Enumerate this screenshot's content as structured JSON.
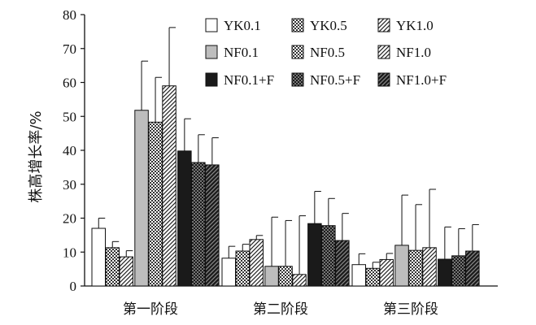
{
  "chart_data": {
    "type": "bar",
    "title": "",
    "xlabel": "",
    "ylabel": "株高增长率/%",
    "ylim": [
      0,
      80
    ],
    "yticks": [
      0,
      10,
      20,
      30,
      40,
      50,
      60,
      70,
      80
    ],
    "grid": false,
    "legend_position": "top-right",
    "categories": [
      "第一阶段",
      "第二阶段",
      "第三阶段"
    ],
    "series": [
      {
        "name": "YK0.1",
        "values": [
          17.0,
          8.2,
          6.3
        ],
        "errors": [
          3.0,
          3.5,
          3.2
        ],
        "fill": "white"
      },
      {
        "name": "YK0.5",
        "values": [
          11.3,
          10.3,
          5.2
        ],
        "errors": [
          1.8,
          2.0,
          1.8
        ],
        "fill": "dots"
      },
      {
        "name": "YK1.0",
        "values": [
          8.6,
          13.7,
          7.8
        ],
        "errors": [
          1.8,
          1.2,
          1.8
        ],
        "fill": "diag"
      },
      {
        "name": "NF0.1",
        "values": [
          51.8,
          5.8,
          12.0
        ],
        "errors": [
          14.5,
          14.5,
          14.8
        ],
        "fill": "gray"
      },
      {
        "name": "NF0.5",
        "values": [
          48.3,
          5.8,
          10.5
        ],
        "errors": [
          13.2,
          13.5,
          13.5
        ],
        "fill": "dots"
      },
      {
        "name": "NF1.0",
        "values": [
          59.0,
          3.4,
          11.3
        ],
        "errors": [
          17.2,
          17.3,
          17.2
        ],
        "fill": "diag"
      },
      {
        "name": "NF0.1+F",
        "values": [
          39.8,
          18.4,
          7.9
        ],
        "errors": [
          9.5,
          9.5,
          9.5
        ],
        "fill": "black"
      },
      {
        "name": "NF0.5+F",
        "values": [
          36.4,
          17.8,
          8.9
        ],
        "errors": [
          8.2,
          8.0,
          8.0
        ],
        "fill": "darkcheck"
      },
      {
        "name": "NF1.0+F",
        "values": [
          35.7,
          13.4,
          10.3
        ],
        "errors": [
          8.0,
          8.0,
          7.8
        ],
        "fill": "darkdiag"
      }
    ]
  }
}
